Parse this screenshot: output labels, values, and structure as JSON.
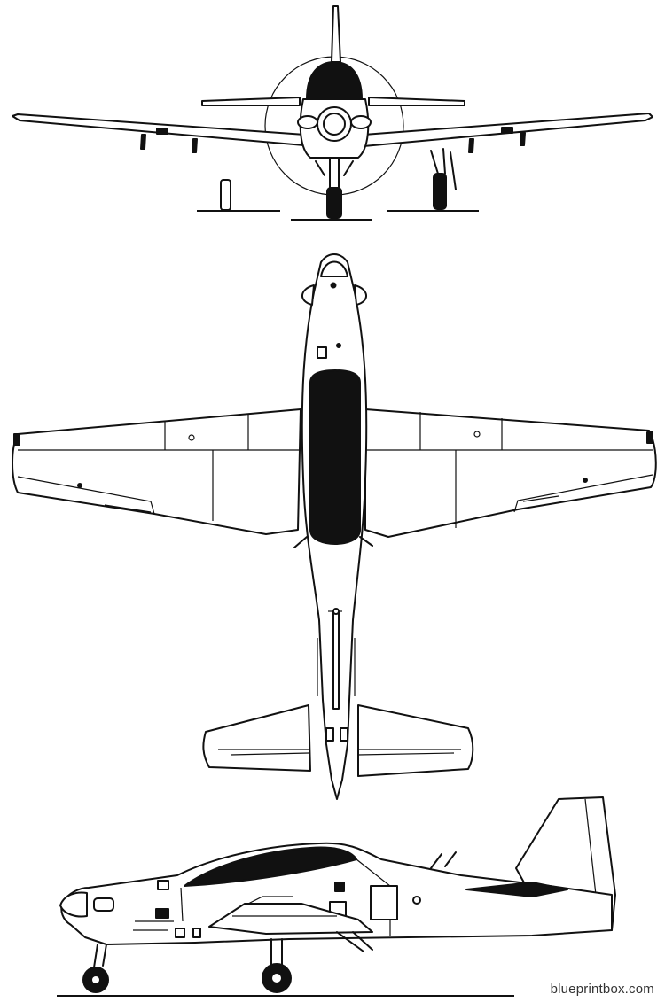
{
  "watermark": "blueprintbox.com",
  "views": [
    "front",
    "top",
    "side"
  ],
  "colors": {
    "ink": "#111111",
    "background": "#ffffff"
  }
}
